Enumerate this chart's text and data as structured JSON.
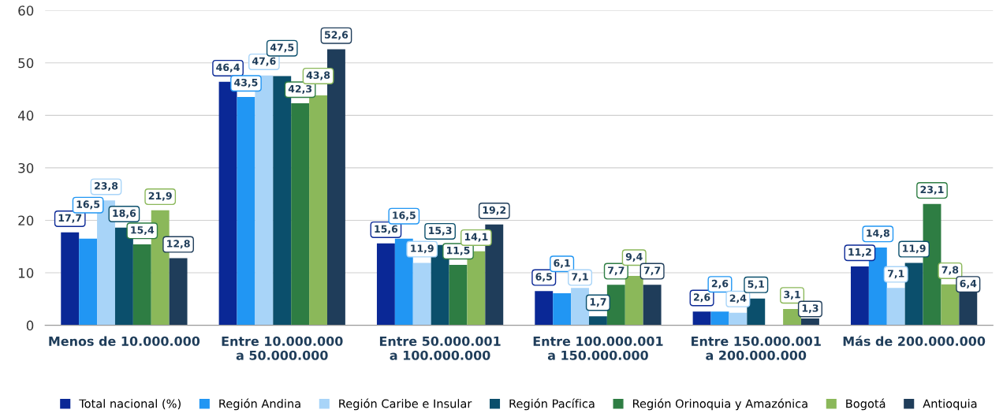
{
  "chart_data": {
    "type": "bar",
    "categories": [
      "Menos de 10.000.000",
      "Entre 10.000.000\na 50.000.000",
      "Entre 50.000.001\na 100.000.000",
      "Entre 100.000.001\na 150.000.000",
      "Entre 150.000.001\na 200.000.000",
      "Más de 200.000.000"
    ],
    "series": [
      {
        "name": "Total nacional (%)",
        "color": "#0a2896",
        "values": [
          17.7,
          46.4,
          15.6,
          6.5,
          2.6,
          11.2
        ],
        "value_labels": [
          "17,7",
          "46,4",
          "15,6",
          "6,5",
          "2,6",
          "11,2"
        ]
      },
      {
        "name": "Región Andina",
        "color": "#2196f3",
        "values": [
          16.5,
          43.5,
          16.5,
          6.1,
          2.6,
          14.8
        ],
        "value_labels": [
          "16,5",
          "43,5",
          "16,5",
          "6,1",
          "2,6",
          "14,8"
        ]
      },
      {
        "name": "Región Caribe e Insular",
        "color": "#a8d4f8",
        "values": [
          23.8,
          47.6,
          11.9,
          7.1,
          2.4,
          7.1
        ],
        "value_labels": [
          "23,8",
          "47,6",
          "11,9",
          "7,1",
          "2,4",
          "7,1"
        ]
      },
      {
        "name": "Región Pacífica",
        "color": "#0b4f6c",
        "values": [
          18.6,
          47.5,
          15.3,
          1.7,
          5.1,
          11.9
        ],
        "value_labels": [
          "18,6",
          "47,5",
          "15,3",
          "1,7",
          "5,1",
          "11,9"
        ]
      },
      {
        "name": "Región Orinoquia y Amazónica",
        "color": "#2e7d43",
        "values": [
          15.4,
          42.3,
          11.5,
          7.7,
          null,
          23.1
        ],
        "value_labels": [
          "15,4",
          "42,3",
          "11,5",
          "7,7",
          null,
          "23,1"
        ]
      },
      {
        "name": "Bogotá",
        "color": "#8bb85a",
        "values": [
          21.9,
          43.8,
          14.1,
          9.4,
          3.1,
          7.8
        ],
        "value_labels": [
          "21,9",
          "43,8",
          "14,1",
          "9,4",
          "3,1",
          "7,8"
        ]
      },
      {
        "name": "Antioquia",
        "color": "#1f3d5a",
        "values": [
          12.8,
          52.6,
          19.2,
          7.7,
          1.3,
          6.4
        ],
        "value_labels": [
          "12,8",
          "52,6",
          "19,2",
          "7,7",
          "1,3",
          "6,4"
        ]
      }
    ],
    "ylim": [
      0,
      60
    ],
    "yticks": [
      0,
      10,
      20,
      30,
      40,
      50,
      60
    ],
    "grid": "y",
    "legend": "bottom"
  }
}
